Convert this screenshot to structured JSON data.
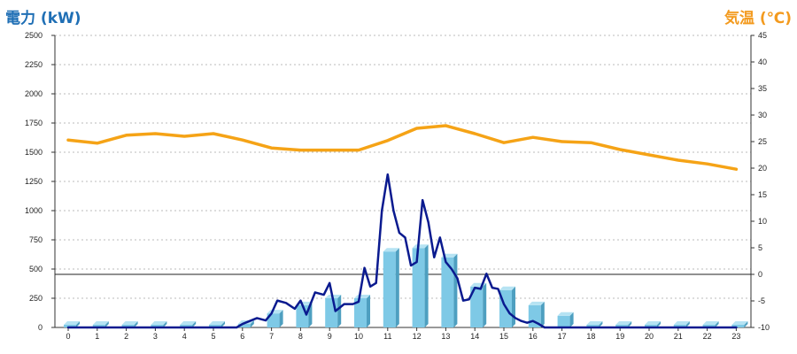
{
  "chart_data": {
    "type": "bar+line",
    "left_axis_title": "電力 (kW)",
    "right_axis_title": "気温 (℃)",
    "x_ticks": [
      "0",
      "1",
      "2",
      "3",
      "4",
      "5",
      "6",
      "7",
      "8",
      "9",
      "10",
      "11",
      "12",
      "13",
      "14",
      "15",
      "16",
      "17",
      "18",
      "19",
      "20",
      "21",
      "22",
      "23"
    ],
    "y_left": {
      "min": 0,
      "max": 2500,
      "step": 250,
      "ticks": [
        "0",
        "250",
        "500",
        "750",
        "1000",
        "1250",
        "1500",
        "1750",
        "2000",
        "2250",
        "2500"
      ]
    },
    "y_right": {
      "min": -10,
      "max": 45,
      "step": 5,
      "ticks": [
        "-10",
        "-5",
        "0",
        "5",
        "10",
        "15",
        "20",
        "25",
        "30",
        "35",
        "40",
        "45"
      ]
    },
    "grid": true,
    "bars_hourly_kw": [
      0,
      0,
      0,
      0,
      0,
      0,
      30,
      120,
      190,
      250,
      250,
      650,
      680,
      600,
      350,
      320,
      190,
      100,
      0,
      0,
      0,
      0,
      0,
      0
    ],
    "power_line_kw": {
      "x": [
        0,
        1,
        2,
        3,
        4,
        5,
        5.5,
        5.8,
        6.0,
        6.3,
        6.5,
        6.8,
        7.0,
        7.2,
        7.5,
        7.8,
        8.0,
        8.2,
        8.5,
        8.8,
        9.0,
        9.2,
        9.5,
        9.8,
        10.0,
        10.2,
        10.4,
        10.6,
        10.8,
        11.0,
        11.2,
        11.4,
        11.6,
        11.8,
        12.0,
        12.2,
        12.4,
        12.6,
        12.8,
        13.0,
        13.2,
        13.4,
        13.6,
        13.8,
        14.0,
        14.2,
        14.4,
        14.6,
        14.8,
        15.0,
        15.2,
        15.4,
        15.6,
        15.8,
        16.0,
        16.2,
        16.4,
        16.6,
        16.8,
        17.0,
        17.2,
        17.4,
        17.6,
        17.8,
        18,
        19,
        20,
        21,
        22,
        23
      ],
      "y": [
        0,
        0,
        0,
        0,
        0,
        0,
        0,
        0,
        30,
        60,
        80,
        60,
        120,
        230,
        210,
        160,
        230,
        110,
        300,
        280,
        380,
        140,
        200,
        200,
        220,
        510,
        350,
        380,
        1000,
        1310,
        1000,
        810,
        770,
        530,
        560,
        1090,
        900,
        600,
        770,
        560,
        500,
        420,
        230,
        240,
        340,
        330,
        460,
        340,
        330,
        200,
        120,
        80,
        55,
        40,
        55,
        30,
        0,
        0,
        0,
        0,
        0,
        0,
        0,
        0,
        0,
        0,
        0,
        0,
        0,
        0
      ]
    },
    "temperature_line_c": {
      "x": [
        0,
        1,
        2,
        3,
        4,
        5,
        6,
        7,
        8,
        9,
        10,
        11,
        12,
        13,
        14,
        15,
        16,
        17,
        18,
        19,
        20,
        21,
        22,
        23
      ],
      "y": [
        25.3,
        24.7,
        26.2,
        26.5,
        26.0,
        26.5,
        25.3,
        23.8,
        23.4,
        23.4,
        23.4,
        25.2,
        27.5,
        28.0,
        26.5,
        24.8,
        25.8,
        25.0,
        24.8,
        23.5,
        22.5,
        21.5,
        20.8,
        19.8
      ]
    },
    "colors": {
      "bars": "#7ec9e6",
      "bars_side": "#4e9fc0",
      "power_line": "#0a1a8f",
      "temperature_line": "#f5a316",
      "left_title": "#1f6fb5",
      "right_title": "#f39a1e"
    }
  }
}
